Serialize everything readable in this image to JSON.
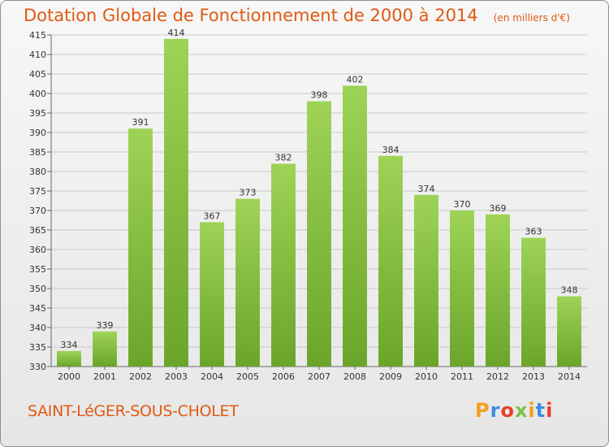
{
  "header": {
    "title": "Dotation Globale de Fonctionnement de 2000 à 2014",
    "subtitle": "(en milliers d'€)"
  },
  "footer": {
    "place_name": "SAINT-LéGER-SOUS-CHOLET",
    "logo_text": "Proxiti",
    "logo_letters": [
      {
        "char": "P",
        "color": "#f0a020"
      },
      {
        "char": "r",
        "color": "#3a8ede"
      },
      {
        "char": "o",
        "color": "#e8402a"
      },
      {
        "char": "x",
        "color": "#7cc242"
      },
      {
        "char": "i",
        "color": "#f0a020"
      },
      {
        "char": "t",
        "color": "#3a8ede"
      },
      {
        "char": "i",
        "color": "#e8402a"
      }
    ]
  },
  "colors": {
    "bar_light": "#9ed356",
    "bar_dark": "#6aa52a",
    "grid": "#c8c8c8",
    "axis": "#666666",
    "accent": "#e05a12"
  },
  "chart_data": {
    "type": "bar",
    "categories": [
      "2000",
      "2001",
      "2002",
      "2003",
      "2004",
      "2005",
      "2006",
      "2007",
      "2008",
      "2009",
      "2010",
      "2011",
      "2012",
      "2013",
      "2014"
    ],
    "values": [
      334,
      339,
      391,
      414,
      367,
      373,
      382,
      398,
      402,
      384,
      374,
      370,
      369,
      363,
      348
    ],
    "data_labels": [
      "334",
      "339",
      "391",
      "414",
      "367",
      "373",
      "382",
      "398",
      "402",
      "384",
      "374",
      "370",
      "369",
      "363",
      "348"
    ],
    "yticks": [
      330,
      335,
      340,
      345,
      350,
      355,
      360,
      365,
      370,
      375,
      380,
      385,
      390,
      395,
      400,
      405,
      410,
      415
    ],
    "ylim": [
      330,
      415
    ],
    "grid": true,
    "legend": "none"
  }
}
